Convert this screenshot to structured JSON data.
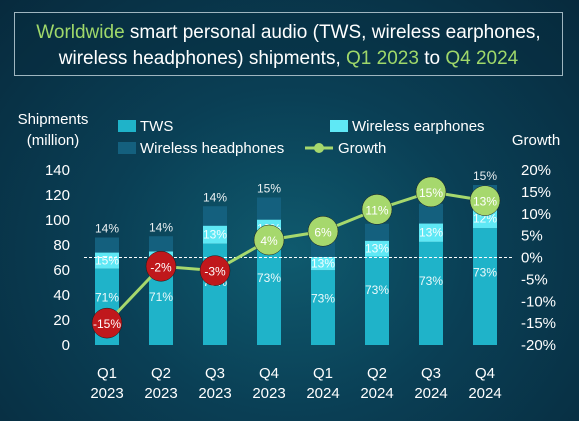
{
  "title": {
    "line1": [
      {
        "text": "Worldwide",
        "hl": true
      },
      {
        "text": " smart personal audio (TWS, wireless earphones,",
        "hl": false
      }
    ],
    "line2": [
      {
        "text": "wireless headphones) shipments, ",
        "hl": false
      },
      {
        "text": "Q1 2023",
        "hl": true
      },
      {
        "text": " to ",
        "hl": false
      },
      {
        "text": "Q4 2024",
        "hl": true
      }
    ]
  },
  "colors": {
    "tws": "#1fb3c9",
    "earphones": "#5fe8f5",
    "headphones": "#14607e",
    "growth_line": "#a6d86d",
    "growth_negative": "#c0181c",
    "text": "#ffffff"
  },
  "chart_data": {
    "type": "bar+line",
    "ylabel_left": [
      "Shipments",
      "(million)"
    ],
    "ylabel_right": "Growth",
    "ylim_left": [
      0,
      140
    ],
    "yticks_left": [
      0,
      20,
      40,
      60,
      80,
      100,
      120,
      140
    ],
    "ylim_right": [
      -20,
      20
    ],
    "yticks_right": [
      "-20%",
      "-15%",
      "-10%",
      "-5%",
      "0%",
      "5%",
      "10%",
      "15%",
      "20%"
    ],
    "categories": [
      [
        "Q1",
        "2023"
      ],
      [
        "Q2",
        "2023"
      ],
      [
        "Q3",
        "2023"
      ],
      [
        "Q4",
        "2023"
      ],
      [
        "Q1",
        "2024"
      ],
      [
        "Q2",
        "2024"
      ],
      [
        "Q3",
        "2024"
      ],
      [
        "Q4",
        "2024"
      ]
    ],
    "totals": [
      86,
      87,
      111,
      118,
      82,
      97,
      113,
      128
    ],
    "series": [
      {
        "name": "TWS",
        "share": [
          71,
          71,
          73,
          73,
          73,
          73,
          73,
          73
        ],
        "share_labels": [
          "71%",
          "71%",
          "73%",
          "73%",
          "73%",
          "73%",
          "73%",
          "73%"
        ]
      },
      {
        "name": "Wireless earphones",
        "share": [
          15,
          15,
          13,
          12,
          13,
          13,
          13,
          12
        ],
        "share_labels": [
          "15%",
          "15%",
          "13%",
          "12%",
          "13%",
          "13%",
          "13%",
          "12%"
        ]
      },
      {
        "name": "Wireless headphones",
        "share": [
          14,
          14,
          14,
          15,
          15,
          14,
          14,
          15
        ],
        "share_labels": [
          "14%",
          "14%",
          "14%",
          "15%",
          "15%",
          "14%",
          "14%",
          "15%"
        ]
      }
    ],
    "growth": {
      "name": "Growth",
      "values": [
        -15,
        -2,
        -3,
        4,
        6,
        11,
        15,
        13
      ],
      "labels": [
        "-15%",
        "-2%",
        "-3%",
        "4%",
        "6%",
        "11%",
        "15%",
        "13%"
      ]
    },
    "legend": [
      {
        "label": "TWS",
        "kind": "bar",
        "color_key": "tws"
      },
      {
        "label": "Wireless earphones",
        "kind": "bar",
        "color_key": "earphones"
      },
      {
        "label": "Wireless headphones",
        "kind": "bar",
        "color_key": "headphones"
      },
      {
        "label": "Growth",
        "kind": "line",
        "color_key": "growth_line"
      }
    ]
  }
}
